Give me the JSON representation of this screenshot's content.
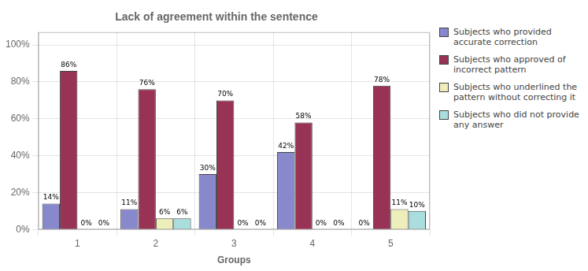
{
  "chart_data": {
    "type": "bar",
    "title": "Lack of agreement within the sentence",
    "xlabel": "Groups",
    "categories": [
      "1",
      "2",
      "3",
      "4",
      "5"
    ],
    "series": [
      {
        "name": "Subjects who provided\naccurate correction",
        "color": "#8888CC",
        "values": [
          14,
          11,
          30,
          42,
          0
        ],
        "value_labels": [
          "14%",
          "11%",
          "30%",
          "42%",
          "0%"
        ]
      },
      {
        "name": "Subjects who approved of\nincorrect pattern",
        "color": "#993355",
        "values": [
          86,
          76,
          70,
          58,
          78
        ],
        "value_labels": [
          "86%",
          "76%",
          "70%",
          "58%",
          "78%"
        ]
      },
      {
        "name": "Subjects who underlined the\npattern without correcting it",
        "color": "#EEEEBB",
        "values": [
          0,
          6,
          0,
          0,
          11
        ],
        "value_labels": [
          "0%",
          "6%",
          "0%",
          "0%",
          "11%"
        ]
      },
      {
        "name": "Subjects who did not provide\nany answer",
        "color": "#AADDDD",
        "values": [
          0,
          6,
          0,
          0,
          10
        ],
        "value_labels": [
          "0%",
          "6%",
          "0%",
          "0%",
          "10%"
        ]
      }
    ],
    "ylim": [
      0,
      107
    ],
    "yticks": [
      {
        "value": 0,
        "label": "0%"
      },
      {
        "value": 20,
        "label": "20%"
      },
      {
        "value": 40,
        "label": "40%"
      },
      {
        "value": 60,
        "label": "60%"
      },
      {
        "value": 80,
        "label": "80%"
      },
      {
        "value": 100,
        "label": "100%"
      }
    ],
    "grid": true,
    "legend": "right",
    "data_labels": true
  }
}
